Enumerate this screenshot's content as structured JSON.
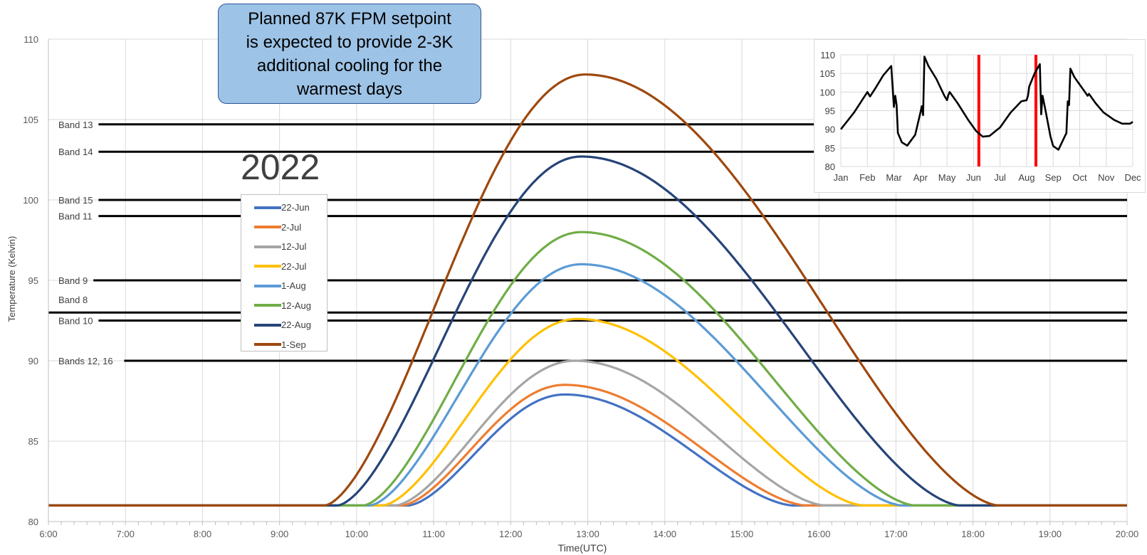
{
  "chart_data": [
    {
      "type": "line",
      "title": "",
      "xlabel": "Time(UTC)",
      "ylabel": "Temperature (Kelvin)",
      "xlim": [
        "6:00",
        "20:00"
      ],
      "ylim": [
        80,
        110
      ],
      "x_ticks": [
        "6:00",
        "7:00",
        "8:00",
        "9:00",
        "10:00",
        "11:00",
        "12:00",
        "13:00",
        "14:00",
        "15:00",
        "16:00",
        "17:00",
        "18:00",
        "19:00",
        "20:00"
      ],
      "y_ticks": [
        80,
        85,
        90,
        95,
        100,
        105,
        110
      ],
      "grid": true,
      "legend_position": "left",
      "series": [
        {
          "name": "22-Jun",
          "color": "#4472c4",
          "baseline": 81,
          "start": "10:40",
          "peak_time": "12:42",
          "peak": 87.9,
          "end": "15:40"
        },
        {
          "name": "2-Jul",
          "color": "#ed7d31",
          "baseline": 81,
          "start": "10:35",
          "peak_time": "12:42",
          "peak": 88.5,
          "end": "15:50"
        },
        {
          "name": "12-Jul",
          "color": "#a5a5a5",
          "baseline": 81,
          "start": "10:30",
          "peak_time": "12:50",
          "peak": 90.0,
          "end": "16:05"
        },
        {
          "name": "22-Jul",
          "color": "#ffc000",
          "baseline": 81,
          "start": "10:20",
          "peak_time": "12:52",
          "peak": 92.6,
          "end": "16:35"
        },
        {
          "name": "1-Aug",
          "color": "#5b9bd5",
          "baseline": 81,
          "start": "10:10",
          "peak_time": "12:55",
          "peak": 96.0,
          "end": "17:05"
        },
        {
          "name": "12-Aug",
          "color": "#70ad47",
          "baseline": 81,
          "start": "10:05",
          "peak_time": "12:55",
          "peak": 98.0,
          "end": "17:15"
        },
        {
          "name": "22-Aug",
          "color": "#264478",
          "baseline": 81,
          "start": "9:45",
          "peak_time": "12:55",
          "peak": 102.7,
          "end": "17:50"
        },
        {
          "name": "1-Sep",
          "color": "#9e480e",
          "baseline": 81,
          "start": "9:35",
          "peak_time": "12:58",
          "peak": 107.8,
          "end": "18:20"
        }
      ],
      "reference_lines": [
        {
          "label": "Band 13",
          "value": 104.7
        },
        {
          "label": "Band 14",
          "value": 103.0
        },
        {
          "label": "Band 15",
          "value": 100.0
        },
        {
          "label": "Band 11",
          "value": 99.0
        },
        {
          "label": "Band 9",
          "value": 95.0
        },
        {
          "label": "Band 8",
          "value": 93.0
        },
        {
          "label": "Band 10",
          "value": 92.5
        },
        {
          "label": "Bands 12, 16",
          "value": 90.0
        }
      ],
      "annotation": {
        "callout": [
          "Planned 87K FPM setpoint",
          "is expected to provide 2-3K",
          "additional cooling for the",
          "warmest days"
        ],
        "year": "2022"
      }
    },
    {
      "type": "line",
      "title": "",
      "ylim": [
        80,
        110
      ],
      "y_ticks": [
        80,
        85,
        90,
        95,
        100,
        105,
        110
      ],
      "x_ticks": [
        "Jan",
        "Feb",
        "Mar",
        "Apr",
        "May",
        "Jun",
        "Jul",
        "Aug",
        "Sep",
        "Oct",
        "Nov",
        "Dec"
      ],
      "grid": true,
      "series": [
        {
          "color": "#000000",
          "x": [
            0.0,
            0.5,
            1.0,
            1.1,
            1.3,
            1.6,
            1.9,
            2.0,
            2.05,
            2.1,
            2.15,
            2.3,
            2.5,
            2.8,
            3.0,
            3.05,
            3.1,
            3.15,
            3.3,
            3.6,
            3.9,
            4.0,
            4.05,
            4.1,
            4.4,
            4.8,
            5.1,
            5.35,
            5.6,
            6.0,
            6.4,
            6.8,
            7.0,
            7.05,
            7.1,
            7.3,
            7.5,
            7.55,
            7.6,
            7.7,
            7.9,
            8.0,
            8.2,
            8.5,
            8.55,
            8.6,
            8.65,
            8.8,
            9.1,
            9.3,
            9.35,
            9.4,
            9.6,
            9.9,
            10.3,
            10.6,
            10.9,
            11.0
          ],
          "y": [
            90,
            94.5,
            100,
            98.8,
            101,
            104.5,
            107,
            96,
            99,
            96.5,
            89,
            86.5,
            85.6,
            88.5,
            94.5,
            96.2,
            93.8,
            109.5,
            107,
            103.5,
            99,
            97.8,
            99.2,
            100,
            97,
            92.5,
            89.5,
            88,
            88.2,
            90.5,
            94.5,
            97.5,
            97.8,
            99,
            101.5,
            105,
            107.5,
            94,
            99,
            95.5,
            88,
            85.5,
            84.5,
            89,
            97.5,
            96.5,
            106.3,
            104,
            101,
            99,
            99.5,
            99,
            97,
            94.5,
            92.5,
            91.5,
            91.5,
            92
          ]
        }
      ],
      "highlight_markers": [
        "Jun",
        "Aug"
      ]
    }
  ]
}
